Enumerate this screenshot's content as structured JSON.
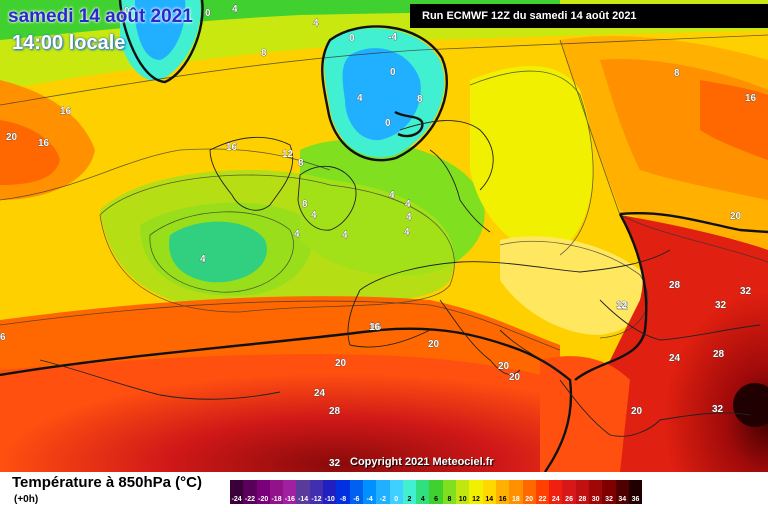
{
  "header": {
    "date_line": "samedi 14 août 2021",
    "time_line": "14:00 locale",
    "run_info": "Run ECMWF 12Z du samedi 14 août 2021"
  },
  "footer": {
    "variable_title": "Température à 850hPa (°C)",
    "lead_time": "(+0h)",
    "copyright": "Copyright 2021 Meteociel.fr"
  },
  "scale": {
    "labels": [
      "-24",
      "-22",
      "-20",
      "-18",
      "-16",
      "-14",
      "-12",
      "-10",
      "-8",
      "-6",
      "-4",
      "-2",
      "0",
      "2",
      "4",
      "6",
      "8",
      "10",
      "12",
      "14",
      "16",
      "18",
      "20",
      "22",
      "24",
      "26",
      "28",
      "30",
      "32",
      "34",
      "36"
    ],
    "colors": [
      "#3a003a",
      "#5a005a",
      "#7a007a",
      "#92128a",
      "#a020a0",
      "#5a3a9a",
      "#4030b0",
      "#2020c0",
      "#0030e0",
      "#0060f0",
      "#0090ff",
      "#20b0ff",
      "#40d0ff",
      "#40f0d0",
      "#30e080",
      "#40d030",
      "#80e020",
      "#c0e810",
      "#f0f000",
      "#ffd800",
      "#ffb000",
      "#ff9000",
      "#ff6800",
      "#ff4000",
      "#f02010",
      "#d81818",
      "#c01010",
      "#a00808",
      "#800000",
      "#500000",
      "#200000"
    ]
  },
  "map": {
    "contour_labels": [
      {
        "text": "0"
      },
      {
        "text": "0"
      },
      {
        "text": "4"
      },
      {
        "text": "4"
      },
      {
        "text": "-4"
      },
      {
        "text": "0"
      },
      {
        "text": "0"
      },
      {
        "text": "4"
      },
      {
        "text": "0"
      },
      {
        "text": "8"
      },
      {
        "text": "8"
      },
      {
        "text": "16"
      },
      {
        "text": "20"
      },
      {
        "text": "16"
      },
      {
        "text": "16"
      },
      {
        "text": "12"
      },
      {
        "text": "8"
      },
      {
        "text": "8"
      },
      {
        "text": "4"
      },
      {
        "text": "4"
      },
      {
        "text": "4"
      },
      {
        "text": "4"
      },
      {
        "text": "4"
      },
      {
        "text": "4"
      },
      {
        "text": "4"
      },
      {
        "text": "4"
      },
      {
        "text": "8"
      },
      {
        "text": "16"
      },
      {
        "text": "20"
      },
      {
        "text": "16"
      },
      {
        "text": "20"
      },
      {
        "text": "28"
      },
      {
        "text": "32"
      },
      {
        "text": "12"
      },
      {
        "text": "32"
      },
      {
        "text": "28"
      },
      {
        "text": "16"
      },
      {
        "text": "20"
      },
      {
        "text": "20"
      },
      {
        "text": "20"
      },
      {
        "text": "24"
      },
      {
        "text": "28"
      },
      {
        "text": "20"
      },
      {
        "text": "24"
      },
      {
        "text": "32"
      },
      {
        "text": "32"
      },
      {
        "text": "6"
      },
      {
        "text": "12"
      }
    ]
  }
}
